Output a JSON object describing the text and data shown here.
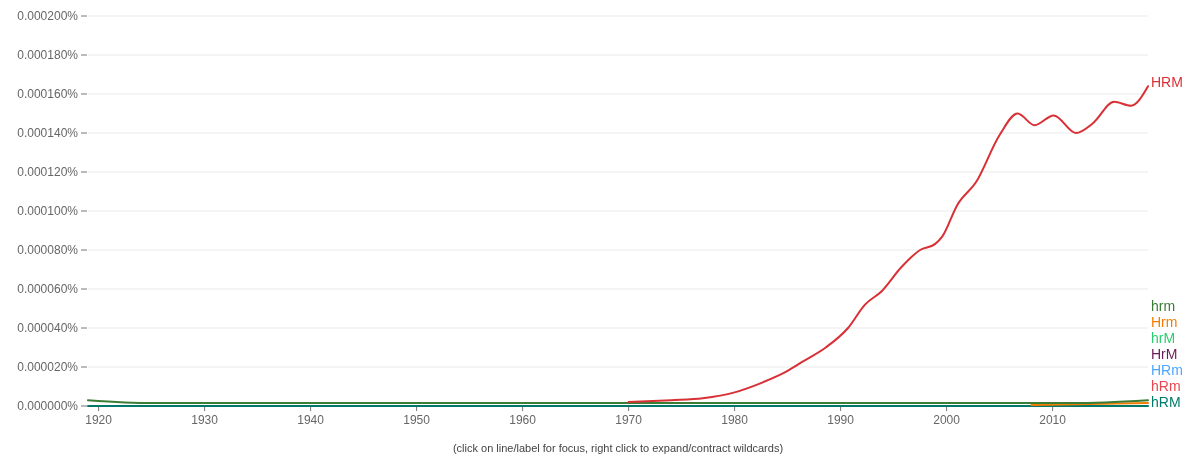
{
  "chart_data": {
    "type": "line",
    "xlim": [
      1919,
      2019
    ],
    "xticks": [
      1920,
      1930,
      1940,
      1950,
      1960,
      1970,
      1980,
      1990,
      2000,
      2010
    ],
    "ylim": [
      0,
      0.0002
    ],
    "yticks": [
      {
        "value": 0,
        "label": "0.000000%"
      },
      {
        "value": 2e-05,
        "label": "0.000020%"
      },
      {
        "value": 4e-05,
        "label": "0.000040%"
      },
      {
        "value": 6e-05,
        "label": "0.000060%"
      },
      {
        "value": 8e-05,
        "label": "0.000080%"
      },
      {
        "value": 0.0001,
        "label": "0.000100%"
      },
      {
        "value": 0.00012,
        "label": "0.000120%"
      },
      {
        "value": 0.00014,
        "label": "0.000140%"
      },
      {
        "value": 0.00016,
        "label": "0.000160%"
      },
      {
        "value": 0.00018,
        "label": "0.000180%"
      },
      {
        "value": 0.0002,
        "label": "0.000200%"
      }
    ],
    "grid": "y",
    "legend": false,
    "marker": "none",
    "line_style": "solid",
    "annotations": [
      "(click on line/label for focus, right click to expand/contract wildcards)"
    ],
    "series": [
      {
        "name": "HRM",
        "color": "#d93036",
        "x": [
          1970,
          1974,
          1977,
          1980,
          1982.6,
          1985,
          1986.5,
          1988.6,
          1990.7,
          1992.3,
          1993.9,
          1995.7,
          1997.5,
          1998.9,
          1999.6,
          2001,
          2002.8,
          2005,
          2006.7,
          2008.3,
          2010.1,
          2012.2,
          2013.8,
          2015.8,
          2017.4,
          2019
        ],
        "values": [
          2e-06,
          3e-06,
          4e-06,
          7e-06,
          1.2e-05,
          1.8e-05,
          2.3e-05,
          3e-05,
          4e-05,
          5.2e-05,
          5.9e-05,
          7.1e-05,
          8e-05,
          8.3e-05,
          8.7e-05,
          0.000103,
          0.000115,
          0.000139,
          0.00015,
          0.000144,
          0.000149,
          0.00014,
          0.000145,
          0.000156,
          0.000154,
          0.000164
        ]
      },
      {
        "name": "hrm",
        "color": "#3b7d34",
        "x": [
          1919,
          1925,
          1960,
          1990,
          2012,
          2019
        ],
        "values": [
          3e-06,
          1.5e-06,
          1.5e-06,
          1.5e-06,
          1.5e-06,
          3e-06
        ]
      },
      {
        "name": "Hrm",
        "color": "#f57c00",
        "x": [
          2008,
          2019
        ],
        "values": [
          5e-07,
          1.5e-06
        ]
      },
      {
        "name": "hrM",
        "color": "#2ecc71"
      },
      {
        "name": "HrM",
        "color": "#6a1b5a"
      },
      {
        "name": "HRm",
        "color": "#4da6ff"
      },
      {
        "name": "hRm",
        "color": "#e8474f"
      },
      {
        "name": "hRM",
        "color": "#00796b",
        "x": [
          1919,
          2019
        ],
        "values": [
          0,
          0
        ]
      }
    ]
  }
}
